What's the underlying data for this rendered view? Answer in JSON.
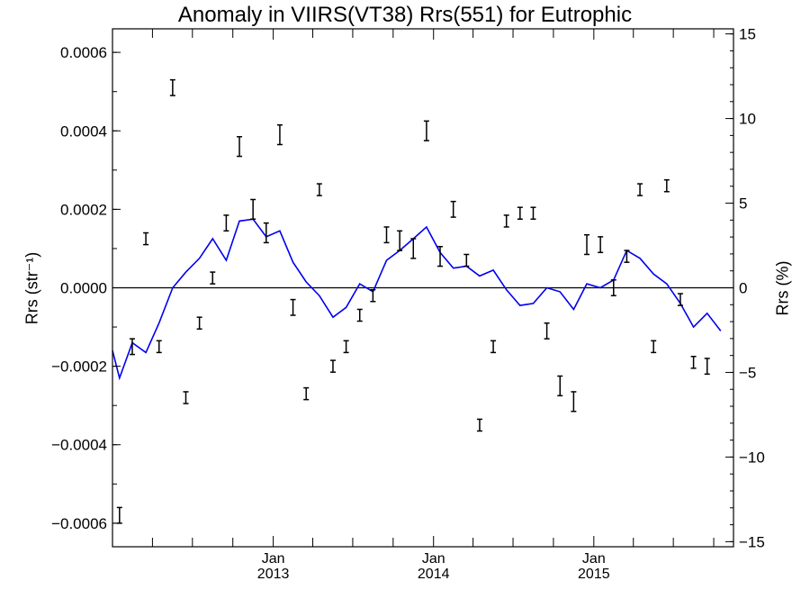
{
  "chart_data": {
    "type": "line",
    "title": "Anomaly in VIIRS(VT38) Rrs(551) for Eutrophic",
    "ylabel_left": "Rrs (str⁻¹)",
    "ylabel_right": "Rrs (%)",
    "ylim_left": [
      -0.00066,
      0.00066
    ],
    "ylim_right": [
      -15.3,
      15.3
    ],
    "xlim": [
      "2012-01-01",
      "2015-11-15"
    ],
    "yticks_left": [
      {
        "value": -0.0006,
        "label": "−0.0006"
      },
      {
        "value": -0.0004,
        "label": "−0.0004"
      },
      {
        "value": -0.0002,
        "label": "−0.0002"
      },
      {
        "value": 0,
        "label": "0.0000"
      },
      {
        "value": 0.0002,
        "label": "0.0002"
      },
      {
        "value": 0.0004,
        "label": "0.0004"
      },
      {
        "value": 0.0006,
        "label": "0.0006"
      }
    ],
    "yticks_right": [
      {
        "value": -15,
        "label": "−15"
      },
      {
        "value": -10,
        "label": "−10"
      },
      {
        "value": -5,
        "label": "−5"
      },
      {
        "value": 0,
        "label": "0"
      },
      {
        "value": 5,
        "label": "5"
      },
      {
        "value": 10,
        "label": "10"
      },
      {
        "value": 15,
        "label": "15"
      }
    ],
    "xticks": [
      {
        "date": "2013-01-01",
        "month": "Jan",
        "year": "2013"
      },
      {
        "date": "2014-01-01",
        "month": "Jan",
        "year": "2014"
      },
      {
        "date": "2015-01-01",
        "month": "Jan",
        "year": "2015"
      }
    ],
    "xticks_minor": [
      "2012-04-01",
      "2012-07-01",
      "2012-10-01",
      "2013-04-01",
      "2013-07-01",
      "2013-10-01",
      "2014-04-01",
      "2014-07-01",
      "2014-10-01",
      "2015-04-01",
      "2015-07-01",
      "2015-10-01"
    ],
    "zero_line": 0,
    "series": [
      {
        "kind": "errorbar",
        "color": "#000000",
        "points": [
          {
            "x": "2012-01-17",
            "y": -0.00058,
            "err": 2e-05
          },
          {
            "x": "2012-02-15",
            "y": -0.00015,
            "err": 2e-05
          },
          {
            "x": "2012-03-17",
            "y": 0.000125,
            "err": 1.5e-05
          },
          {
            "x": "2012-04-16",
            "y": -0.00015,
            "err": 1.5e-05
          },
          {
            "x": "2012-05-17",
            "y": 0.00051,
            "err": 2e-05
          },
          {
            "x": "2012-06-16",
            "y": -0.00028,
            "err": 1.5e-05
          },
          {
            "x": "2012-07-17",
            "y": -9e-05,
            "err": 1.5e-05
          },
          {
            "x": "2012-08-16",
            "y": 2.5e-05,
            "err": 1.5e-05
          },
          {
            "x": "2012-09-16",
            "y": 0.000165,
            "err": 2e-05
          },
          {
            "x": "2012-10-16",
            "y": 0.00036,
            "err": 2.5e-05
          },
          {
            "x": "2012-11-16",
            "y": 0.0002,
            "err": 2.5e-05
          },
          {
            "x": "2012-12-16",
            "y": 0.00014,
            "err": 2.5e-05
          },
          {
            "x": "2013-01-16",
            "y": 0.00039,
            "err": 2.5e-05
          },
          {
            "x": "2013-02-15",
            "y": -5e-05,
            "err": 2e-05
          },
          {
            "x": "2013-03-17",
            "y": -0.00027,
            "err": 1.5e-05
          },
          {
            "x": "2013-04-16",
            "y": 0.00025,
            "err": 1.5e-05
          },
          {
            "x": "2013-05-17",
            "y": -0.0002,
            "err": 1.5e-05
          },
          {
            "x": "2013-06-16",
            "y": -0.00015,
            "err": 1.5e-05
          },
          {
            "x": "2013-07-17",
            "y": -7e-05,
            "err": 1.5e-05
          },
          {
            "x": "2013-08-16",
            "y": -2e-05,
            "err": 1.5e-05
          },
          {
            "x": "2013-09-16",
            "y": 0.000135,
            "err": 2e-05
          },
          {
            "x": "2013-10-16",
            "y": 0.00012,
            "err": 2.5e-05
          },
          {
            "x": "2013-11-16",
            "y": 0.0001,
            "err": 2.5e-05
          },
          {
            "x": "2013-12-16",
            "y": 0.0004,
            "err": 2.5e-05
          },
          {
            "x": "2014-01-16",
            "y": 8e-05,
            "err": 2.5e-05
          },
          {
            "x": "2014-02-15",
            "y": 0.0002,
            "err": 2e-05
          },
          {
            "x": "2014-03-17",
            "y": 7e-05,
            "err": 1.5e-05
          },
          {
            "x": "2014-04-16",
            "y": -0.00035,
            "err": 1.5e-05
          },
          {
            "x": "2014-05-17",
            "y": -0.00015,
            "err": 1.5e-05
          },
          {
            "x": "2014-06-16",
            "y": 0.00017,
            "err": 1.5e-05
          },
          {
            "x": "2014-07-17",
            "y": 0.00019,
            "err": 1.5e-05
          },
          {
            "x": "2014-08-16",
            "y": 0.00019,
            "err": 1.5e-05
          },
          {
            "x": "2014-09-16",
            "y": -0.00011,
            "err": 2e-05
          },
          {
            "x": "2014-10-16",
            "y": -0.00025,
            "err": 2.5e-05
          },
          {
            "x": "2014-11-16",
            "y": -0.00029,
            "err": 2.5e-05
          },
          {
            "x": "2014-12-16",
            "y": 0.00011,
            "err": 2.5e-05
          },
          {
            "x": "2015-01-16",
            "y": 0.00011,
            "err": 2e-05
          },
          {
            "x": "2015-02-15",
            "y": 0,
            "err": 2e-05
          },
          {
            "x": "2015-03-17",
            "y": 8e-05,
            "err": 1.5e-05
          },
          {
            "x": "2015-04-16",
            "y": 0.00025,
            "err": 1.5e-05
          },
          {
            "x": "2015-05-17",
            "y": -0.00015,
            "err": 1.5e-05
          },
          {
            "x": "2015-06-16",
            "y": 0.00026,
            "err": 1.5e-05
          },
          {
            "x": "2015-07-17",
            "y": -3e-05,
            "err": 1.5e-05
          },
          {
            "x": "2015-08-16",
            "y": -0.00019,
            "err": 1.5e-05
          },
          {
            "x": "2015-09-16",
            "y": -0.0002,
            "err": 2e-05
          }
        ]
      },
      {
        "kind": "line",
        "color": "#0000ee",
        "points": [
          {
            "x": "2012-01-01",
            "y": -0.00016
          },
          {
            "x": "2012-01-17",
            "y": -0.00023
          },
          {
            "x": "2012-02-15",
            "y": -0.00014
          },
          {
            "x": "2012-03-17",
            "y": -0.000165
          },
          {
            "x": "2012-04-16",
            "y": -9e-05
          },
          {
            "x": "2012-05-17",
            "y": 0
          },
          {
            "x": "2012-06-16",
            "y": 4e-05
          },
          {
            "x": "2012-07-17",
            "y": 7.5e-05
          },
          {
            "x": "2012-08-16",
            "y": 0.000125
          },
          {
            "x": "2012-09-16",
            "y": 7e-05
          },
          {
            "x": "2012-10-16",
            "y": 0.00017
          },
          {
            "x": "2012-11-16",
            "y": 0.000175
          },
          {
            "x": "2012-12-16",
            "y": 0.00013
          },
          {
            "x": "2013-01-16",
            "y": 0.000145
          },
          {
            "x": "2013-02-15",
            "y": 6.5e-05
          },
          {
            "x": "2013-03-17",
            "y": 1.5e-05
          },
          {
            "x": "2013-04-16",
            "y": -2e-05
          },
          {
            "x": "2013-05-17",
            "y": -7.5e-05
          },
          {
            "x": "2013-06-16",
            "y": -5e-05
          },
          {
            "x": "2013-07-17",
            "y": 1e-05
          },
          {
            "x": "2013-08-16",
            "y": -1e-05
          },
          {
            "x": "2013-09-16",
            "y": 7e-05
          },
          {
            "x": "2013-10-16",
            "y": 9.5e-05
          },
          {
            "x": "2013-11-16",
            "y": 0.000125
          },
          {
            "x": "2013-12-16",
            "y": 0.000155
          },
          {
            "x": "2014-01-16",
            "y": 9e-05
          },
          {
            "x": "2014-02-15",
            "y": 5e-05
          },
          {
            "x": "2014-03-17",
            "y": 5.5e-05
          },
          {
            "x": "2014-04-16",
            "y": 3e-05
          },
          {
            "x": "2014-05-17",
            "y": 4.5e-05
          },
          {
            "x": "2014-06-16",
            "y": -5e-06
          },
          {
            "x": "2014-07-17",
            "y": -4.5e-05
          },
          {
            "x": "2014-08-16",
            "y": -4e-05
          },
          {
            "x": "2014-09-16",
            "y": 0
          },
          {
            "x": "2014-10-16",
            "y": -1e-05
          },
          {
            "x": "2014-11-16",
            "y": -5.5e-05
          },
          {
            "x": "2014-12-16",
            "y": 1e-05
          },
          {
            "x": "2015-01-16",
            "y": 0
          },
          {
            "x": "2015-02-15",
            "y": 2e-05
          },
          {
            "x": "2015-03-17",
            "y": 9.5e-05
          },
          {
            "x": "2015-04-16",
            "y": 7.5e-05
          },
          {
            "x": "2015-05-17",
            "y": 3.5e-05
          },
          {
            "x": "2015-06-16",
            "y": 1e-05
          },
          {
            "x": "2015-07-17",
            "y": -4e-05
          },
          {
            "x": "2015-08-16",
            "y": -0.0001
          },
          {
            "x": "2015-09-16",
            "y": -6.5e-05
          },
          {
            "x": "2015-10-17",
            "y": -0.00011
          }
        ]
      }
    ]
  }
}
